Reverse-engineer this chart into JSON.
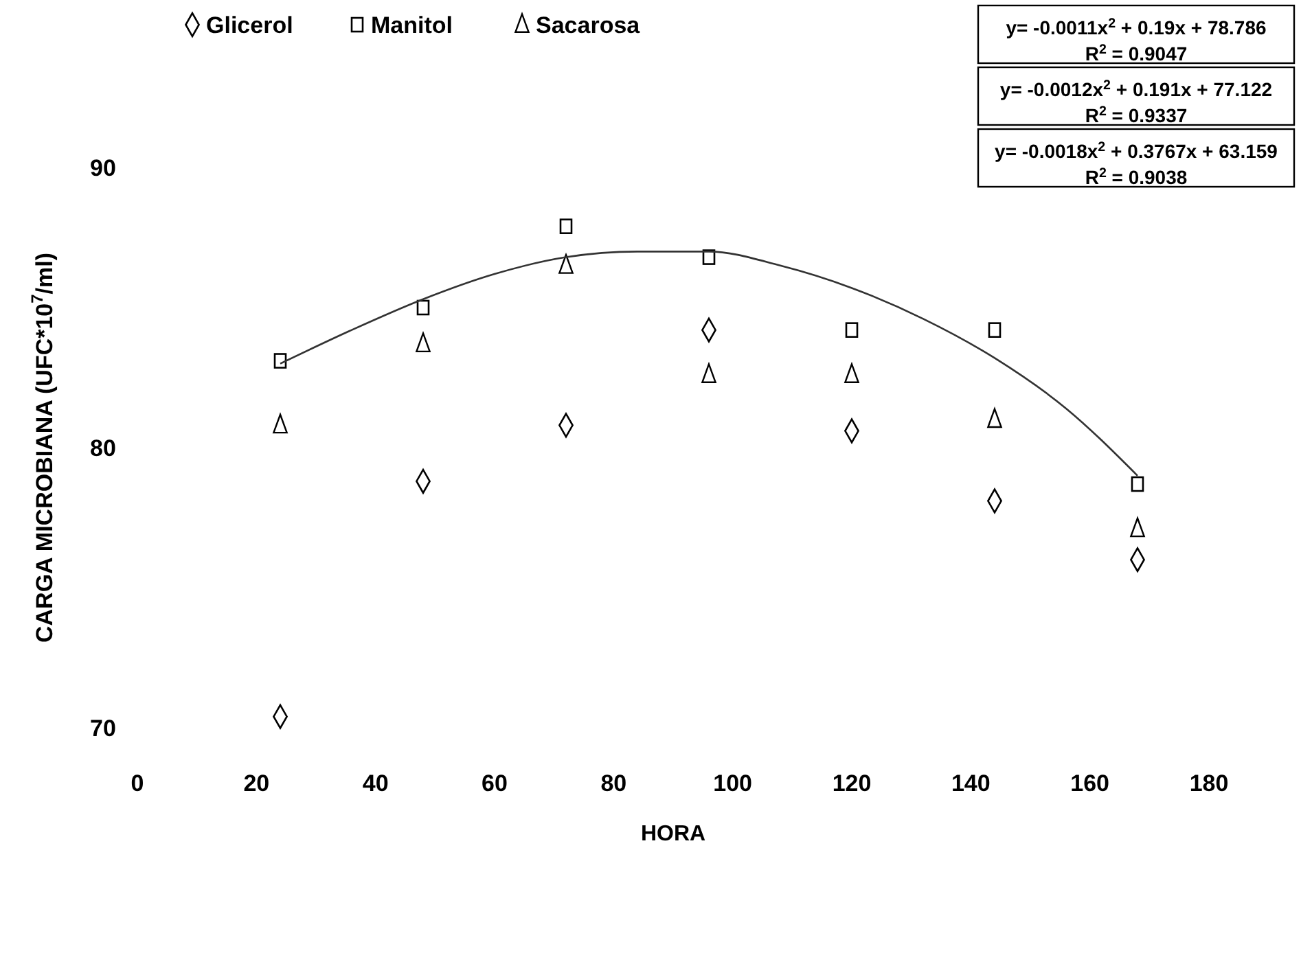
{
  "chart_data": {
    "type": "scatter",
    "xlabel": "HORA",
    "ylabel": "CARGA MICROBIANA (UFC*10$^{7}$/ml)",
    "x": [
      24,
      48,
      72,
      96,
      120,
      144,
      168
    ],
    "series": [
      {
        "name": "Glicerol",
        "color": "#000000",
        "marker": "diamond",
        "values": [
          70.4,
          78.8,
          80.8,
          84.2,
          80.6,
          78.1,
          76.0
        ]
      },
      {
        "name": "Manitol",
        "color": "#000000",
        "marker": "square",
        "values": [
          83.1,
          85.0,
          87.9,
          86.8,
          84.2,
          84.2,
          78.7
        ]
      },
      {
        "name": "Sacarosa",
        "color": "#000000",
        "marker": "triangle",
        "values": [
          80.8,
          83.7,
          86.5,
          82.6,
          82.6,
          81.0,
          77.1
        ]
      },
      {
        "type": "line",
        "color": "#333333",
        "x": [
          24,
          36,
          48,
          60,
          72,
          84,
          96,
          108,
          120,
          132,
          144,
          156,
          168
        ],
        "values": [
          83.0,
          84.2,
          85.3,
          86.2,
          86.8,
          87.0,
          87.0,
          86.5,
          85.7,
          84.6,
          83.2,
          81.4,
          79.0
        ]
      }
    ],
    "xlim": [
      0,
      180
    ],
    "xticks": [
      0,
      20,
      40,
      60,
      80,
      100,
      120,
      140,
      160,
      180
    ],
    "ylim": [
      70,
      90
    ],
    "yticks": [
      70,
      80,
      90
    ],
    "grid": false,
    "legend": "top left",
    "annotations": [
      "y= -0.0011x$^{2}$ + 0.19x + 78.786",
      "R$^{2}$ = 0.9047",
      "y= -0.0012x$^{2}$ + 0.191x + 77.122",
      "R$^{2}$ = 0.9337",
      "y= -0.0018x$^{2}$ + 0.3767x + 63.159",
      "R$^{2}$ = 0.9038"
    ]
  }
}
